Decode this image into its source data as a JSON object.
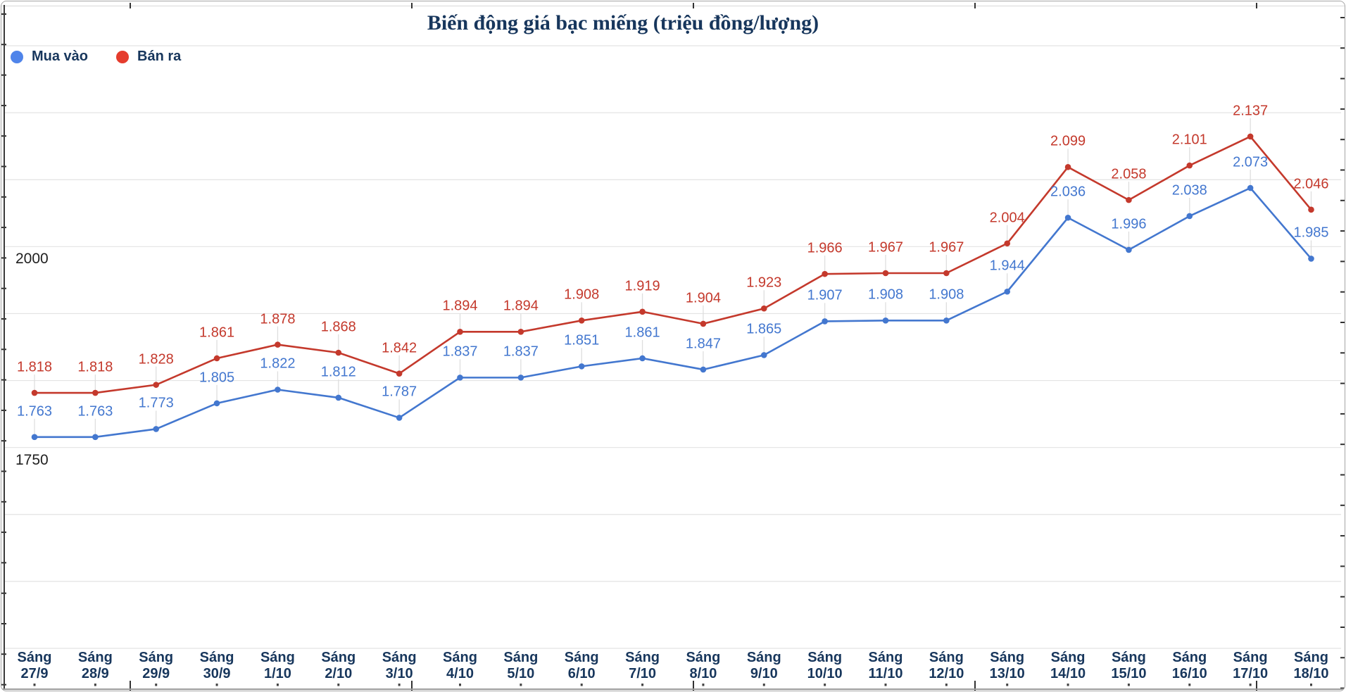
{
  "title": "Biến động giá bạc miếng (triệu đồng/lượng)",
  "colors": {
    "title_text": "#17365c",
    "x_label_text": "#17365c",
    "y_label_text": "#1f1f1f",
    "gridline": "#e3e3e3",
    "leader_line": "#dedede",
    "axis_dark": "#3a3a3a",
    "axis_bottom": "#9c9c9c"
  },
  "chart_data": {
    "type": "line",
    "title": "Biến động giá bạc miếng (triệu đồng/lượng)",
    "categories": [
      "Sáng 27/9",
      "Sáng 28/9",
      "Sáng 29/9",
      "Sáng 30/9",
      "Sáng 1/10",
      "Sáng 2/10",
      "Sáng 3/10",
      "Sáng 4/10",
      "Sáng 5/10",
      "Sáng 6/10",
      "Sáng 7/10",
      "Sáng 8/10",
      "Sáng 9/10",
      "Sáng 10/10",
      "Sáng 11/10",
      "Sáng 12/10",
      "Sáng 13/10",
      "Sáng 14/10",
      "Sáng 15/10",
      "Sáng 16/10",
      "Sáng 17/10",
      "Sáng 18/10"
    ],
    "series": [
      {
        "name": "Mua vào",
        "color": "#4377cf",
        "legend_color": "#4f84ea",
        "values": [
          1763,
          1763,
          1773,
          1805,
          1822,
          1812,
          1787,
          1837,
          1837,
          1851,
          1861,
          1847,
          1865,
          1907,
          1908,
          1908,
          1944,
          2036,
          1996,
          2038,
          2073,
          1985
        ],
        "labels": [
          "1.763",
          "1.763",
          "1.773",
          "1.805",
          "1.822",
          "1.812",
          "1.787",
          "1.837",
          "1.837",
          "1.851",
          "1.861",
          "1.847",
          "1.865",
          "1.907",
          "1.908",
          "1.908",
          "1.944",
          "2.036",
          "1.996",
          "2.038",
          "2.073",
          "1.985"
        ]
      },
      {
        "name": "Bán ra",
        "color": "#c4392c",
        "legend_color": "#e53c2d",
        "values": [
          1818,
          1818,
          1828,
          1861,
          1878,
          1868,
          1842,
          1894,
          1894,
          1908,
          1919,
          1904,
          1923,
          1966,
          1967,
          1967,
          2004,
          2099,
          2058,
          2101,
          2137,
          2046
        ],
        "labels": [
          "1.818",
          "1.818",
          "1.828",
          "1.861",
          "1.878",
          "1.868",
          "1.842",
          "1.894",
          "1.894",
          "1.908",
          "1.919",
          "1.904",
          "1.923",
          "1.966",
          "1.967",
          "1.967",
          "2.004",
          "2.099",
          "2.058",
          "2.101",
          "2.137",
          "2.046"
        ]
      }
    ],
    "ylim": [
      1500,
      2250
    ],
    "y_gridline_count": 10,
    "y_axis_labels": [
      {
        "value": 2000,
        "text": "2000"
      },
      {
        "value": 1750,
        "text": "1750"
      }
    ],
    "value_label_format": "thousands shown with dot separator (e.g. 1.763)",
    "grid": "horizontal gridlines on; faint leader line from each value label to its point",
    "legend_position": "top-left",
    "xlabel": "",
    "ylabel": ""
  }
}
